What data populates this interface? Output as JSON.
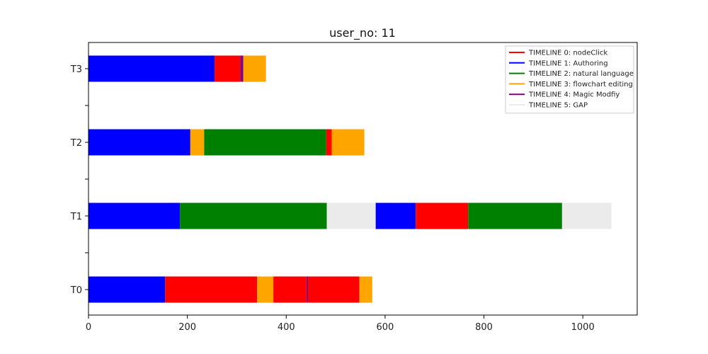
{
  "chart_data": {
    "type": "bar",
    "title": "user_no: 11",
    "xlabel": "",
    "ylabel": "",
    "xlim": [
      0,
      1110
    ],
    "x_ticks": [
      0,
      200,
      400,
      600,
      800,
      1000
    ],
    "y_ticks": [
      {
        "label": "T0",
        "labeled": true
      },
      {
        "label": "",
        "labeled": false
      },
      {
        "label": "T1",
        "labeled": true
      },
      {
        "label": "",
        "labeled": false
      },
      {
        "label": "T2",
        "labeled": true
      },
      {
        "label": "",
        "labeled": false
      },
      {
        "label": "T3",
        "labeled": true
      }
    ],
    "legend_position": "top-right",
    "legend": [
      {
        "name": "TIMELINE 0: nodeClick",
        "color": "#ff0000"
      },
      {
        "name": "TIMELINE 1: Authoring",
        "color": "#0000ff"
      },
      {
        "name": "TIMELINE 2: natural language",
        "color": "#008000"
      },
      {
        "name": "TIMELINE 3: flowchart editing",
        "color": "#ffa500"
      },
      {
        "name": "TIMELINE 4: Magic Modfiy",
        "color": "#800080"
      },
      {
        "name": "TIMELINE 5: GAP",
        "color": "#ebebeb"
      }
    ],
    "rows": [
      {
        "label": "T0",
        "segments": [
          {
            "start": 0,
            "end": 155,
            "type": "Authoring",
            "color": "#0000ff"
          },
          {
            "start": 155,
            "end": 341,
            "type": "nodeClick",
            "color": "#ff0000"
          },
          {
            "start": 341,
            "end": 374,
            "type": "flowchart editing",
            "color": "#ffa500"
          },
          {
            "start": 374,
            "end": 441,
            "type": "nodeClick",
            "color": "#ff0000"
          },
          {
            "start": 441,
            "end": 444,
            "type": "Magic Modfiy",
            "color": "#800080"
          },
          {
            "start": 444,
            "end": 548,
            "type": "nodeClick",
            "color": "#ff0000"
          },
          {
            "start": 548,
            "end": 574,
            "type": "flowchart editing",
            "color": "#ffa500"
          }
        ]
      },
      {
        "label": "T1",
        "segments": [
          {
            "start": 0,
            "end": 185,
            "type": "Authoring",
            "color": "#0000ff"
          },
          {
            "start": 185,
            "end": 482,
            "type": "natural language",
            "color": "#008000"
          },
          {
            "start": 482,
            "end": 581,
            "type": "GAP",
            "color": "#ebebeb"
          },
          {
            "start": 581,
            "end": 662,
            "type": "Authoring",
            "color": "#0000ff"
          },
          {
            "start": 662,
            "end": 768,
            "type": "nodeClick",
            "color": "#ff0000"
          },
          {
            "start": 768,
            "end": 958,
            "type": "natural language",
            "color": "#008000"
          },
          {
            "start": 958,
            "end": 1058,
            "type": "GAP",
            "color": "#ebebeb"
          }
        ]
      },
      {
        "label": "T2",
        "segments": [
          {
            "start": 0,
            "end": 206,
            "type": "Authoring",
            "color": "#0000ff"
          },
          {
            "start": 206,
            "end": 234,
            "type": "flowchart editing",
            "color": "#ffa500"
          },
          {
            "start": 234,
            "end": 481,
            "type": "natural language",
            "color": "#008000"
          },
          {
            "start": 481,
            "end": 492,
            "type": "nodeClick",
            "color": "#ff0000"
          },
          {
            "start": 492,
            "end": 558,
            "type": "flowchart editing",
            "color": "#ffa500"
          }
        ]
      },
      {
        "label": "T3",
        "segments": [
          {
            "start": 0,
            "end": 255,
            "type": "Authoring",
            "color": "#0000ff"
          },
          {
            "start": 255,
            "end": 307,
            "type": "nodeClick",
            "color": "#ff0000"
          },
          {
            "start": 307,
            "end": 313,
            "type": "Magic Modfiy",
            "color": "#800080"
          },
          {
            "start": 313,
            "end": 359,
            "type": "flowchart editing",
            "color": "#ffa500"
          }
        ]
      }
    ]
  }
}
